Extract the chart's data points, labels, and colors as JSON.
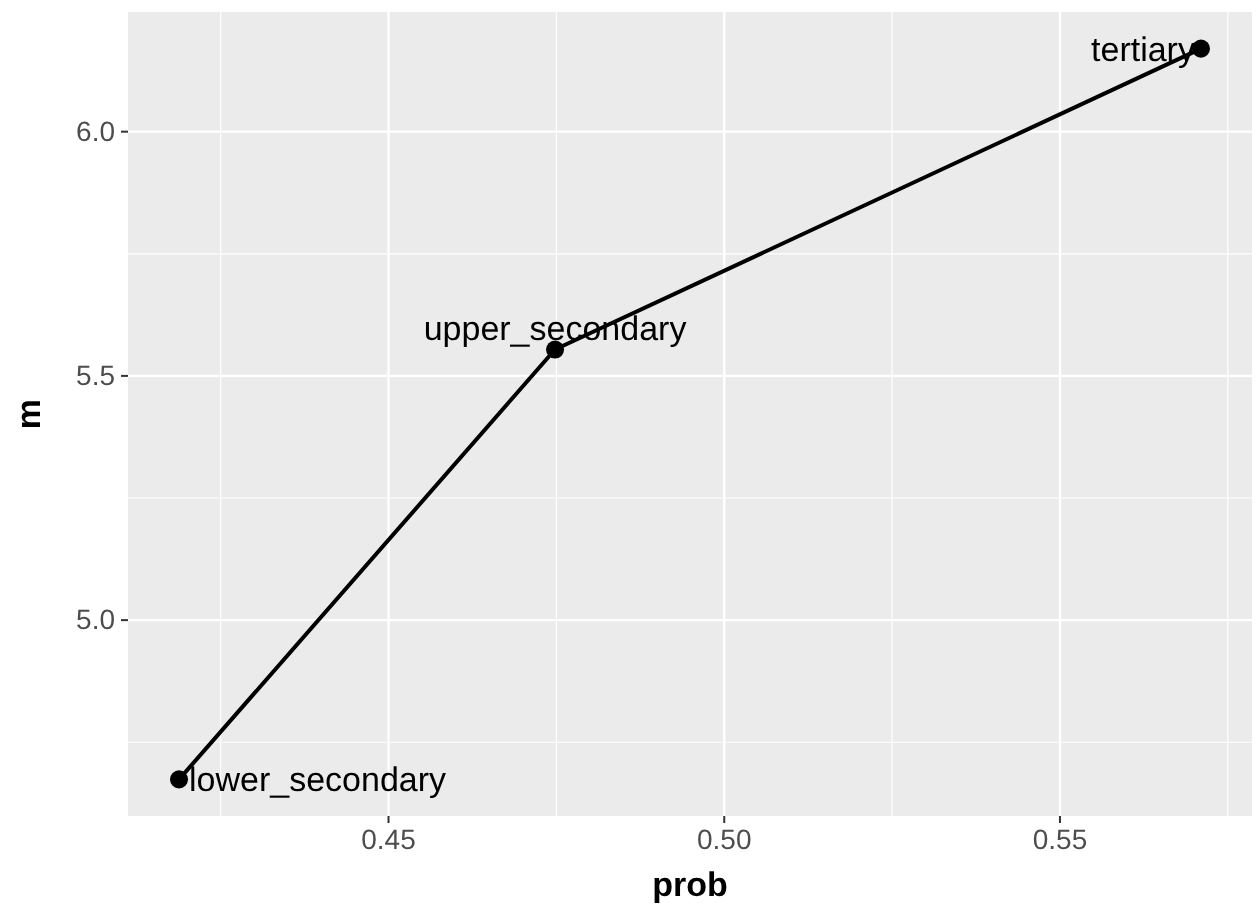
{
  "chart_data": {
    "type": "line",
    "xlabel": "prob",
    "ylabel": "m",
    "x": [
      0.4188,
      0.4748,
      0.571
    ],
    "series": [
      {
        "color": "#000000",
        "values": [
          4.674,
          5.554,
          6.17
        ]
      }
    ],
    "marker": "circle",
    "grid": true,
    "xlim": [
      0.4112,
      0.5786
    ],
    "xticks": [
      {
        "value": 0.45,
        "label": "0.45"
      },
      {
        "value": 0.5,
        "label": "0.50"
      },
      {
        "value": 0.55,
        "label": "0.55"
      }
    ],
    "ylim": [
      4.599,
      6.245
    ],
    "yticks": [
      {
        "value": 5,
        "label": "5.0"
      },
      {
        "value": 5.5,
        "label": "5.5"
      },
      {
        "value": 6,
        "label": "6.0"
      }
    ],
    "annotations": [
      {
        "text": "lower_secondary",
        "x": 0.4188,
        "y": 4.674
      },
      {
        "text": "upper_secondary",
        "x": 0.4748,
        "y": 5.554
      },
      {
        "text": "tertiary",
        "x": 0.571,
        "y": 6.17
      }
    ]
  }
}
